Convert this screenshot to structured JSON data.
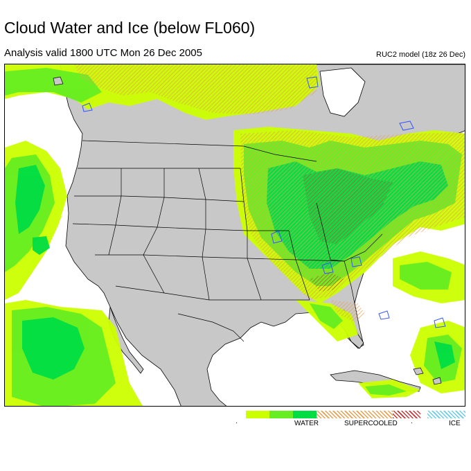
{
  "title": "Cloud Water and Ice (below FL060)",
  "subtitle": "Analysis valid 1800 UTC Mon 26 Dec 2005",
  "model": "RUC2 model (18z 26 Dec)",
  "legend": {
    "water_label": "WATER",
    "supercooled_label": "SUPERCOOLED",
    "ice_label": "ICE",
    "water_colors": [
      "#ccff00",
      "#66ee22",
      "#00dd44"
    ],
    "supercooled_color": "#e89a60",
    "supercooled_strong_color": "#cc3333",
    "ice_color": "#66ccee"
  },
  "colors": {
    "land": "#c8c8c8",
    "ocean": "#ffffff",
    "boundaries": "#000000",
    "water_light": "#ccff00",
    "water_mid": "#66ee22",
    "water_dark": "#00dd44",
    "supercooled": "#e8a050",
    "ice": "#3355ff"
  }
}
